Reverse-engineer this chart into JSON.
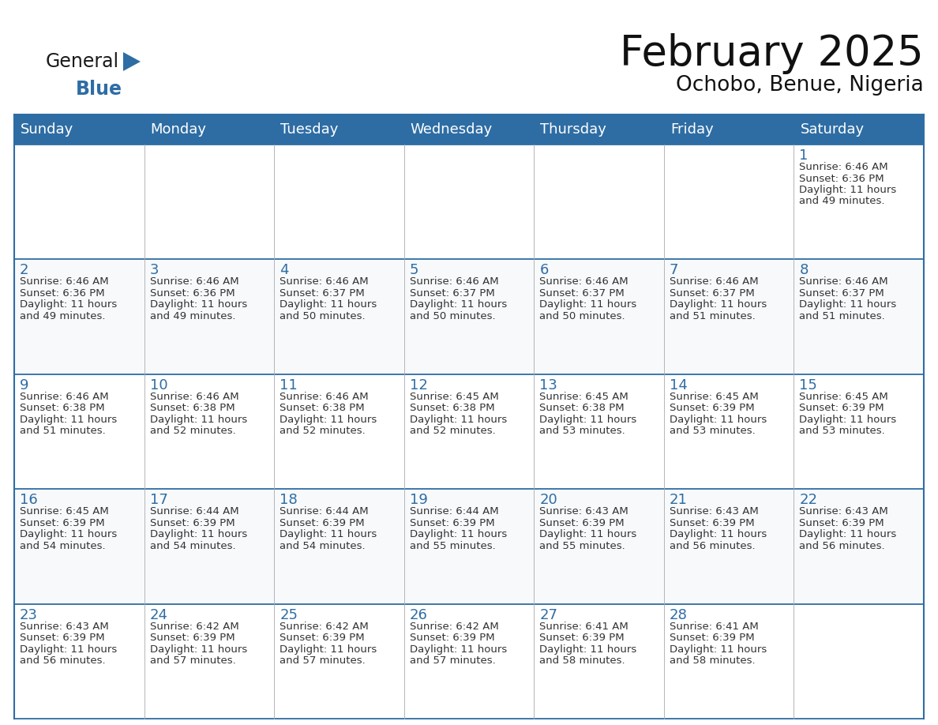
{
  "title": "February 2025",
  "subtitle": "Ochobo, Benue, Nigeria",
  "header_bg": "#2E6DA4",
  "header_text_color": "#FFFFFF",
  "header_days": [
    "Sunday",
    "Monday",
    "Tuesday",
    "Wednesday",
    "Thursday",
    "Friday",
    "Saturday"
  ],
  "border_color": "#2E6DA4",
  "day_num_color": "#2E6DA4",
  "logo_general_color": "#1a1a1a",
  "logo_blue_color": "#2E6DA4",
  "row0_bg": "#F0F4F8",
  "row_odd_bg": "#FFFFFF",
  "row_even_bg": "#F5F8FA",
  "days": [
    {
      "day": 1,
      "row": 0,
      "col": 6,
      "sunrise": "6:46 AM",
      "sunset": "6:36 PM",
      "daylight_h": "11 hours",
      "daylight_m": "49 minutes."
    },
    {
      "day": 2,
      "row": 1,
      "col": 0,
      "sunrise": "6:46 AM",
      "sunset": "6:36 PM",
      "daylight_h": "11 hours",
      "daylight_m": "49 minutes."
    },
    {
      "day": 3,
      "row": 1,
      "col": 1,
      "sunrise": "6:46 AM",
      "sunset": "6:36 PM",
      "daylight_h": "11 hours",
      "daylight_m": "49 minutes."
    },
    {
      "day": 4,
      "row": 1,
      "col": 2,
      "sunrise": "6:46 AM",
      "sunset": "6:37 PM",
      "daylight_h": "11 hours",
      "daylight_m": "50 minutes."
    },
    {
      "day": 5,
      "row": 1,
      "col": 3,
      "sunrise": "6:46 AM",
      "sunset": "6:37 PM",
      "daylight_h": "11 hours",
      "daylight_m": "50 minutes."
    },
    {
      "day": 6,
      "row": 1,
      "col": 4,
      "sunrise": "6:46 AM",
      "sunset": "6:37 PM",
      "daylight_h": "11 hours",
      "daylight_m": "50 minutes."
    },
    {
      "day": 7,
      "row": 1,
      "col": 5,
      "sunrise": "6:46 AM",
      "sunset": "6:37 PM",
      "daylight_h": "11 hours",
      "daylight_m": "51 minutes."
    },
    {
      "day": 8,
      "row": 1,
      "col": 6,
      "sunrise": "6:46 AM",
      "sunset": "6:37 PM",
      "daylight_h": "11 hours",
      "daylight_m": "51 minutes."
    },
    {
      "day": 9,
      "row": 2,
      "col": 0,
      "sunrise": "6:46 AM",
      "sunset": "6:38 PM",
      "daylight_h": "11 hours",
      "daylight_m": "51 minutes."
    },
    {
      "day": 10,
      "row": 2,
      "col": 1,
      "sunrise": "6:46 AM",
      "sunset": "6:38 PM",
      "daylight_h": "11 hours",
      "daylight_m": "52 minutes."
    },
    {
      "day": 11,
      "row": 2,
      "col": 2,
      "sunrise": "6:46 AM",
      "sunset": "6:38 PM",
      "daylight_h": "11 hours",
      "daylight_m": "52 minutes."
    },
    {
      "day": 12,
      "row": 2,
      "col": 3,
      "sunrise": "6:45 AM",
      "sunset": "6:38 PM",
      "daylight_h": "11 hours",
      "daylight_m": "52 minutes."
    },
    {
      "day": 13,
      "row": 2,
      "col": 4,
      "sunrise": "6:45 AM",
      "sunset": "6:38 PM",
      "daylight_h": "11 hours",
      "daylight_m": "53 minutes."
    },
    {
      "day": 14,
      "row": 2,
      "col": 5,
      "sunrise": "6:45 AM",
      "sunset": "6:39 PM",
      "daylight_h": "11 hours",
      "daylight_m": "53 minutes."
    },
    {
      "day": 15,
      "row": 2,
      "col": 6,
      "sunrise": "6:45 AM",
      "sunset": "6:39 PM",
      "daylight_h": "11 hours",
      "daylight_m": "53 minutes."
    },
    {
      "day": 16,
      "row": 3,
      "col": 0,
      "sunrise": "6:45 AM",
      "sunset": "6:39 PM",
      "daylight_h": "11 hours",
      "daylight_m": "54 minutes."
    },
    {
      "day": 17,
      "row": 3,
      "col": 1,
      "sunrise": "6:44 AM",
      "sunset": "6:39 PM",
      "daylight_h": "11 hours",
      "daylight_m": "54 minutes."
    },
    {
      "day": 18,
      "row": 3,
      "col": 2,
      "sunrise": "6:44 AM",
      "sunset": "6:39 PM",
      "daylight_h": "11 hours",
      "daylight_m": "54 minutes."
    },
    {
      "day": 19,
      "row": 3,
      "col": 3,
      "sunrise": "6:44 AM",
      "sunset": "6:39 PM",
      "daylight_h": "11 hours",
      "daylight_m": "55 minutes."
    },
    {
      "day": 20,
      "row": 3,
      "col": 4,
      "sunrise": "6:43 AM",
      "sunset": "6:39 PM",
      "daylight_h": "11 hours",
      "daylight_m": "55 minutes."
    },
    {
      "day": 21,
      "row": 3,
      "col": 5,
      "sunrise": "6:43 AM",
      "sunset": "6:39 PM",
      "daylight_h": "11 hours",
      "daylight_m": "56 minutes."
    },
    {
      "day": 22,
      "row": 3,
      "col": 6,
      "sunrise": "6:43 AM",
      "sunset": "6:39 PM",
      "daylight_h": "11 hours",
      "daylight_m": "56 minutes."
    },
    {
      "day": 23,
      "row": 4,
      "col": 0,
      "sunrise": "6:43 AM",
      "sunset": "6:39 PM",
      "daylight_h": "11 hours",
      "daylight_m": "56 minutes."
    },
    {
      "day": 24,
      "row": 4,
      "col": 1,
      "sunrise": "6:42 AM",
      "sunset": "6:39 PM",
      "daylight_h": "11 hours",
      "daylight_m": "57 minutes."
    },
    {
      "day": 25,
      "row": 4,
      "col": 2,
      "sunrise": "6:42 AM",
      "sunset": "6:39 PM",
      "daylight_h": "11 hours",
      "daylight_m": "57 minutes."
    },
    {
      "day": 26,
      "row": 4,
      "col": 3,
      "sunrise": "6:42 AM",
      "sunset": "6:39 PM",
      "daylight_h": "11 hours",
      "daylight_m": "57 minutes."
    },
    {
      "day": 27,
      "row": 4,
      "col": 4,
      "sunrise": "6:41 AM",
      "sunset": "6:39 PM",
      "daylight_h": "11 hours",
      "daylight_m": "58 minutes."
    },
    {
      "day": 28,
      "row": 4,
      "col": 5,
      "sunrise": "6:41 AM",
      "sunset": "6:39 PM",
      "daylight_h": "11 hours",
      "daylight_m": "58 minutes."
    }
  ]
}
